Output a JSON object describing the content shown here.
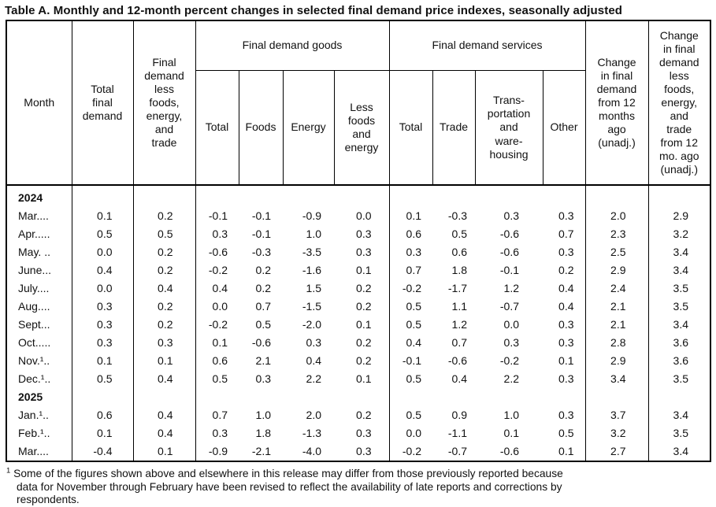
{
  "title": "Table A. Monthly and 12-month percent changes in selected final demand price indexes, seasonally adjusted",
  "table": {
    "head": {
      "month": "Month",
      "total_final_demand": "Total\nfinal\ndemand",
      "less_fet": "Final\ndemand\nless\nfoods,\nenergy,\nand\ntrade",
      "goods": "Final demand goods",
      "goods_sub": [
        "Total",
        "Foods",
        "Energy",
        "Less\nfoods\nand\nenergy"
      ],
      "services": "Final demand services",
      "services_sub": [
        "Total",
        "Trade",
        "Trans-\nportation\nand\nware-\nhousing",
        "Other"
      ],
      "change_12": "Change\nin final\ndemand\nfrom 12\nmonths\nago\n(unadj.)",
      "change_12_less": "Change\nin final\ndemand\nless\nfoods,\nenergy,\nand\ntrade\nfrom 12\nmo. ago\n(unadj.)"
    },
    "rows": [
      {
        "type": "year",
        "label": "2024"
      },
      {
        "type": "data",
        "label": "Mar....",
        "values": [
          "0.1",
          "0.2",
          "-0.1",
          "-0.1",
          "-0.9",
          "0.0",
          "0.1",
          "-0.3",
          "0.3",
          "0.3",
          "2.0",
          "2.9"
        ]
      },
      {
        "type": "data",
        "label": "Apr.....",
        "values": [
          "0.5",
          "0.5",
          "0.3",
          "-0.1",
          "1.0",
          "0.3",
          "0.6",
          "0.5",
          "-0.6",
          "0.7",
          "2.3",
          "3.2"
        ]
      },
      {
        "type": "data",
        "label": "May. ..",
        "values": [
          "0.0",
          "0.2",
          "-0.6",
          "-0.3",
          "-3.5",
          "0.3",
          "0.3",
          "0.6",
          "-0.6",
          "0.3",
          "2.5",
          "3.4"
        ]
      },
      {
        "type": "data",
        "label": "June...",
        "values": [
          "0.4",
          "0.2",
          "-0.2",
          "0.2",
          "-1.6",
          "0.1",
          "0.7",
          "1.8",
          "-0.1",
          "0.2",
          "2.9",
          "3.4"
        ]
      },
      {
        "type": "data",
        "label": "July....",
        "values": [
          "0.0",
          "0.4",
          "0.4",
          "0.2",
          "1.5",
          "0.2",
          "-0.2",
          "-1.7",
          "1.2",
          "0.4",
          "2.4",
          "3.5"
        ]
      },
      {
        "type": "data",
        "label": "Aug....",
        "values": [
          "0.3",
          "0.2",
          "0.0",
          "0.7",
          "-1.5",
          "0.2",
          "0.5",
          "1.1",
          "-0.7",
          "0.4",
          "2.1",
          "3.5"
        ]
      },
      {
        "type": "data",
        "label": "Sept...",
        "values": [
          "0.3",
          "0.2",
          "-0.2",
          "0.5",
          "-2.0",
          "0.1",
          "0.5",
          "1.2",
          "0.0",
          "0.3",
          "2.1",
          "3.4"
        ]
      },
      {
        "type": "data",
        "label": "Oct.....",
        "values": [
          "0.3",
          "0.3",
          "0.1",
          "-0.6",
          "0.3",
          "0.2",
          "0.4",
          "0.7",
          "0.3",
          "0.3",
          "2.8",
          "3.6"
        ]
      },
      {
        "type": "data",
        "label": "Nov.¹..",
        "values": [
          "0.1",
          "0.1",
          "0.6",
          "2.1",
          "0.4",
          "0.2",
          "-0.1",
          "-0.6",
          "-0.2",
          "0.1",
          "2.9",
          "3.6"
        ]
      },
      {
        "type": "data",
        "label": "Dec.¹..",
        "values": [
          "0.5",
          "0.4",
          "0.5",
          "0.3",
          "2.2",
          "0.1",
          "0.5",
          "0.4",
          "2.2",
          "0.3",
          "3.4",
          "3.5"
        ]
      },
      {
        "type": "year",
        "label": "2025"
      },
      {
        "type": "data",
        "label": "Jan.¹..",
        "values": [
          "0.6",
          "0.4",
          "0.7",
          "1.0",
          "2.0",
          "0.2",
          "0.5",
          "0.9",
          "1.0",
          "0.3",
          "3.7",
          "3.4"
        ]
      },
      {
        "type": "data",
        "label": "Feb.¹..",
        "values": [
          "0.1",
          "0.4",
          "0.3",
          "1.8",
          "-1.3",
          "0.3",
          "0.0",
          "-1.1",
          "0.1",
          "0.5",
          "3.2",
          "3.5"
        ]
      },
      {
        "type": "data",
        "label": "Mar....",
        "values": [
          "-0.4",
          "0.1",
          "-0.9",
          "-2.1",
          "-4.0",
          "0.3",
          "-0.2",
          "-0.7",
          "-0.6",
          "0.1",
          "2.7",
          "3.4"
        ]
      }
    ]
  },
  "footnote": {
    "marker": "1",
    "text": "Some of the figures shown above and elsewhere in this release may differ from those previously reported because\ndata for November through February have been revised to reflect the availability of late reports and corrections by\nrespondents."
  }
}
